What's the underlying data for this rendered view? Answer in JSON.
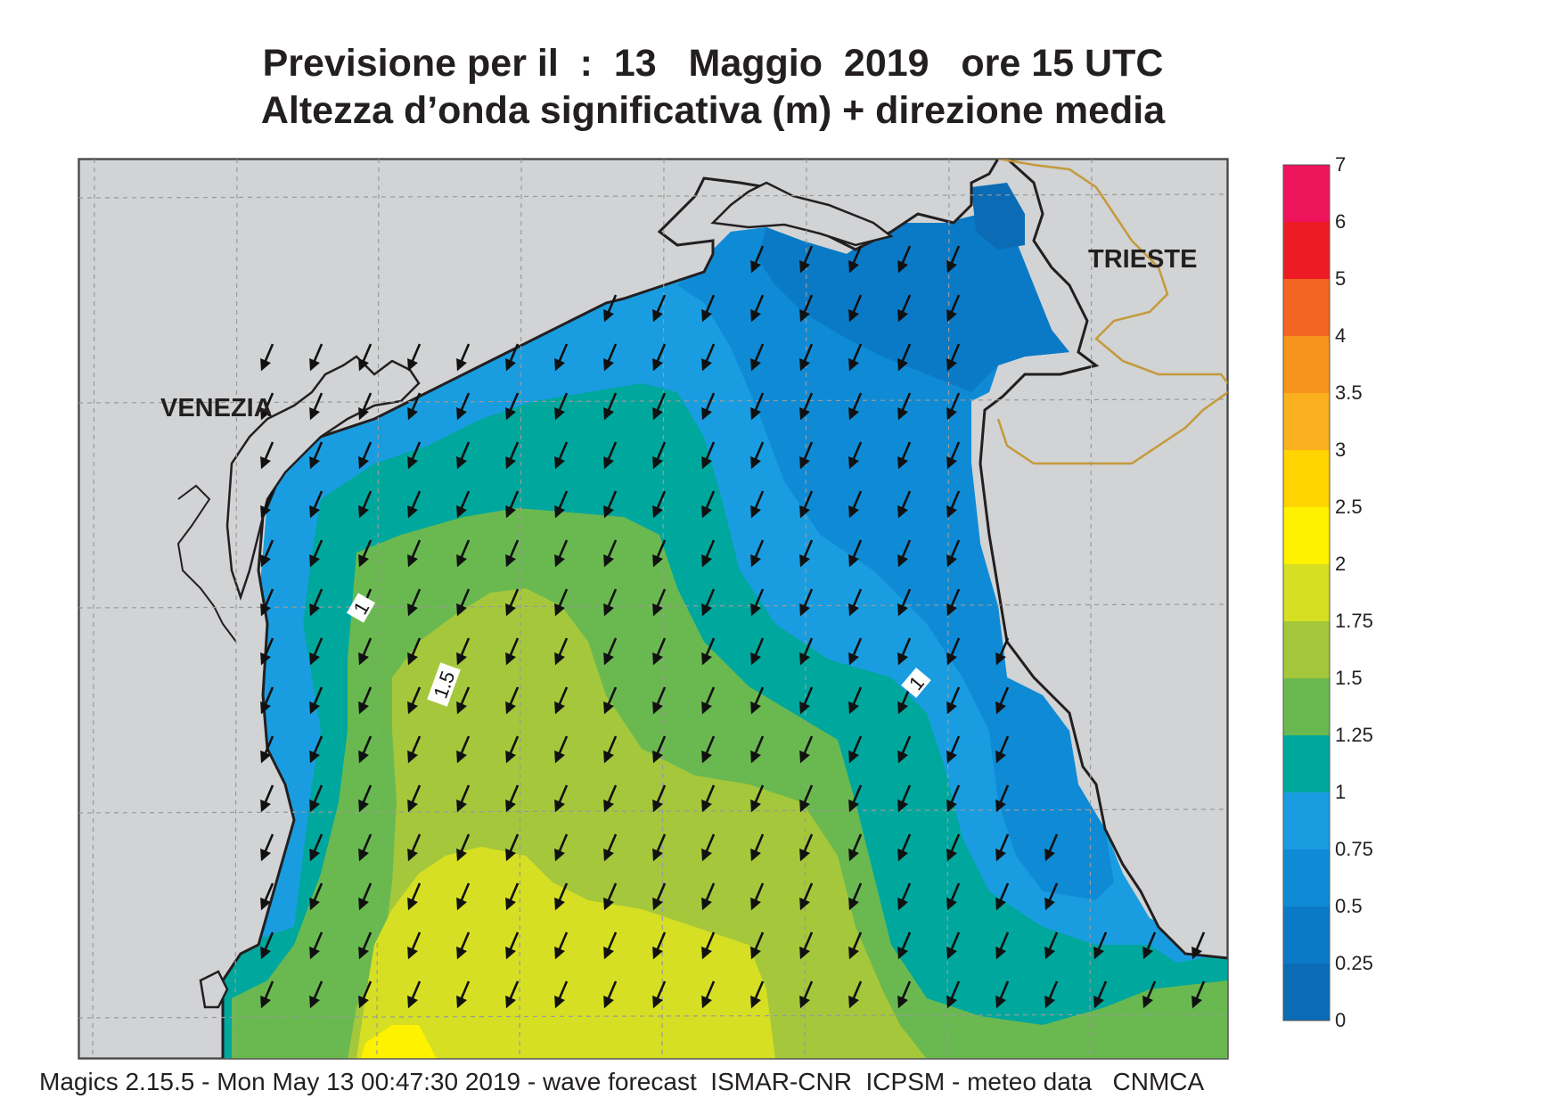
{
  "header": {
    "title_line1": "Previsione per il  :  13   Maggio  2019   ore 15 UTC",
    "title_line2": "Altezza d’onda significativa (m) + direzione media"
  },
  "map": {
    "places": {
      "venezia": "VENEZIA",
      "trieste": "TRIESTE"
    },
    "contour_labels": [
      "1",
      "1.5",
      "1"
    ],
    "colors": {
      "land": "#d1d3d4",
      "sea_0_25": "#0b6cb5",
      "sea_25_50": "#0b7ac6",
      "sea_50_75": "#0f8bd6",
      "sea_75_1": "#1a9de0",
      "sea_1_125": "#00a79d",
      "sea_125_15": "#6ab950",
      "sea_15_175": "#a5c73b",
      "sea_175_2": "#d6df23",
      "sea_2_25": "#fff200",
      "border": "#c49a3b"
    }
  },
  "colorbar": {
    "ticks": [
      "7",
      "6",
      "5",
      "4",
      "3.5",
      "3",
      "2.5",
      "2",
      "1.75",
      "1.5",
      "1.25",
      "1",
      "0.75",
      "0.5",
      "0.25",
      "0"
    ],
    "colors": [
      "#ed145b",
      "#ed1c24",
      "#f26522",
      "#f7941d",
      "#fbb01f",
      "#ffd400",
      "#fff200",
      "#d6df23",
      "#a5c73b",
      "#6ab950",
      "#00a79d",
      "#1a9de0",
      "#0f8bd6",
      "#0b7ac6",
      "#0b6cb5"
    ]
  },
  "footer": {
    "credit": "Magics 2.15.5 - Mon May 13 00:47:30 2019 - wave forecast  ISMAR-CNR  ICPSM - meteo data   CNMCA"
  }
}
